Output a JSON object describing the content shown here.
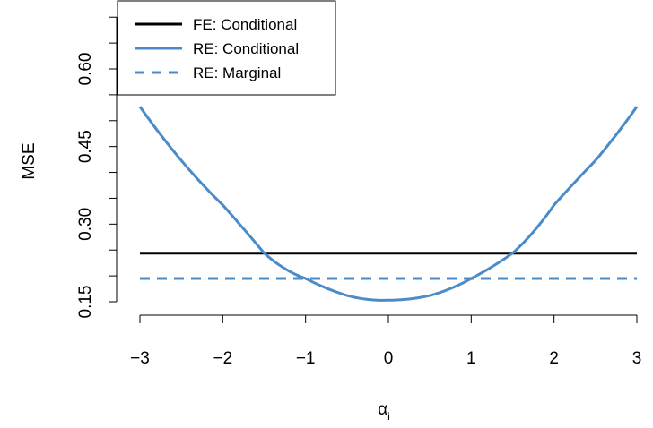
{
  "chart_data": {
    "type": "line",
    "title": "",
    "xlabel_symbol": "α",
    "xlabel_subscript": "i",
    "ylabel": "MSE",
    "xlim": [
      -3,
      3
    ],
    "ylim": [
      0.15,
      0.6
    ],
    "xticks": [
      -3,
      -2,
      -1,
      0,
      1,
      2,
      3
    ],
    "xtick_labels": [
      "−3",
      "−2",
      "−1",
      "0",
      "1",
      "2",
      "3"
    ],
    "yticks": [
      0.15,
      0.3,
      0.45,
      0.6
    ],
    "ytick_labels": [
      "0.15",
      "0.30",
      "0.45",
      "0.60"
    ],
    "grid": false,
    "legend_position": "top-left",
    "series": [
      {
        "name": "FE: Conditional",
        "color": "#000000",
        "dash": "solid",
        "x": [
          -3,
          3
        ],
        "y": [
          0.244,
          0.244
        ]
      },
      {
        "name": "RE: Conditional",
        "color": "#4a8bc8",
        "dash": "solid",
        "x": [
          -3,
          -2.5,
          -2,
          -1.5,
          -1,
          -0.5,
          0,
          0.5,
          1,
          1.5,
          2,
          2.5,
          3
        ],
        "y": [
          0.527,
          0.423,
          0.337,
          0.244,
          0.195,
          0.162,
          0.153,
          0.162,
          0.195,
          0.244,
          0.337,
          0.423,
          0.527
        ]
      },
      {
        "name": "RE: Marginal",
        "color": "#4a8bc8",
        "dash": "dashed",
        "x": [
          -3,
          3
        ],
        "y": [
          0.195,
          0.195
        ]
      }
    ]
  }
}
